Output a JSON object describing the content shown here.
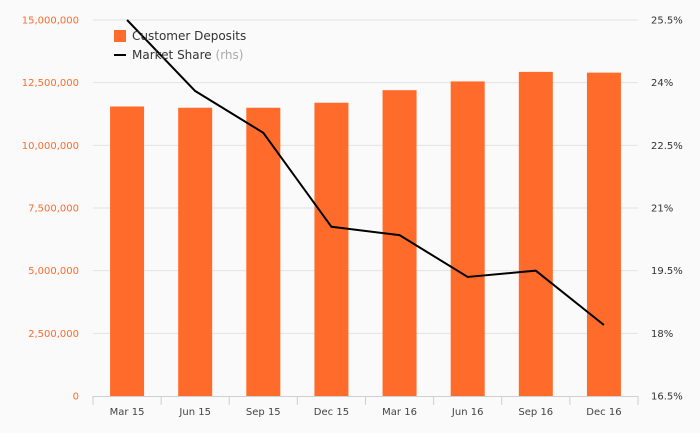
{
  "chart_data": {
    "type": "bar",
    "categories": [
      "Mar 15",
      "Jun 15",
      "Sep 15",
      "Dec 15",
      "Mar 16",
      "Jun 16",
      "Sep 16",
      "Dec 16"
    ],
    "series": [
      {
        "name": "Customer Deposits",
        "type": "bar",
        "axis": "left",
        "color": "#ff6b2b",
        "values": [
          11550000,
          11500000,
          11500000,
          11700000,
          12200000,
          12550000,
          12930000,
          12900000
        ]
      },
      {
        "name": "Market Share",
        "name_suffix": "(rhs)",
        "type": "line",
        "axis": "right",
        "color": "#000000",
        "values": [
          25.5,
          23.8,
          22.8,
          20.55,
          20.35,
          19.35,
          19.5,
          18.2
        ]
      }
    ],
    "y_left": {
      "range": [
        0,
        15000000
      ],
      "ticks": [
        0,
        2500000,
        5000000,
        7500000,
        10000000,
        12500000,
        15000000
      ],
      "tick_labels": [
        "0",
        "2,500,000",
        "5,000,000",
        "7,500,000",
        "10,000,000",
        "12,500,000",
        "15,000,000"
      ]
    },
    "y_right": {
      "range": [
        16.5,
        25.5
      ],
      "ticks": [
        16.5,
        18,
        19.5,
        21,
        22.5,
        24,
        25.5
      ],
      "tick_labels": [
        "16.5%",
        "18%",
        "19.5%",
        "21%",
        "22.5%",
        "24%",
        "25.5%"
      ]
    },
    "grid": true,
    "legend": "top-left"
  }
}
